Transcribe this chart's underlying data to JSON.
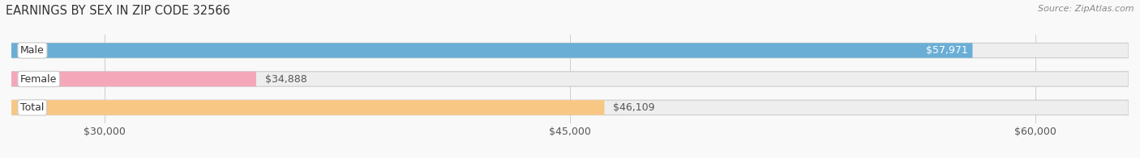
{
  "title": "EARNINGS BY SEX IN ZIP CODE 32566",
  "source": "Source: ZipAtlas.com",
  "categories": [
    "Male",
    "Female",
    "Total"
  ],
  "values": [
    57971,
    34888,
    46109
  ],
  "bar_colors": [
    "#6aaed6",
    "#f4a7b9",
    "#f9c784"
  ],
  "bar_bg_color": "#eeeeee",
  "label_colors": [
    "#ffffff",
    "#555555",
    "#555555"
  ],
  "xmin": 27000,
  "xmax": 63000,
  "xticks": [
    30000,
    45000,
    60000
  ],
  "xtick_labels": [
    "$30,000",
    "$45,000",
    "$60,000"
  ],
  "bar_height": 0.52,
  "bg_color": "#f9f9f9",
  "title_fontsize": 10.5,
  "source_fontsize": 8,
  "tick_fontsize": 9,
  "label_fontsize": 9,
  "category_fontsize": 9
}
